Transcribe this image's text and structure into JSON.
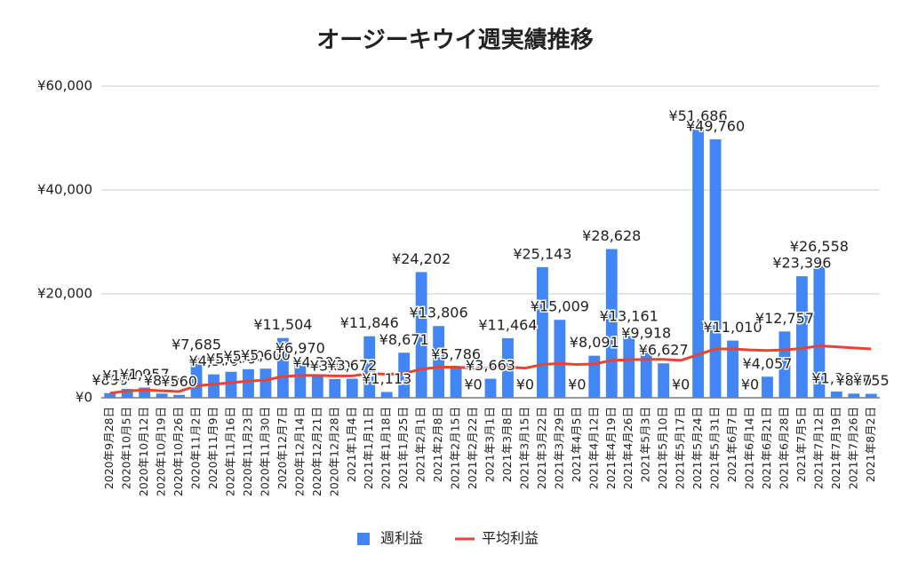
{
  "chart_data": {
    "type": "bar-line",
    "title": "オージーキウイ週実績推移",
    "categories": [
      "2020年9月28日",
      "2020年10月5日",
      "2020年10月12日",
      "2020年10月19日",
      "2020年10月26日",
      "2020年11月2日",
      "2020年11月9日",
      "2020年11月16日",
      "2020年11月23日",
      "2020年11月30日",
      "2020年12月7日",
      "2020年12月14日",
      "2020年12月21日",
      "2020年12月28日",
      "2021年1月4日",
      "2021年1月11日",
      "2021年1月18日",
      "2021年1月25日",
      "2021年2月1日",
      "2021年2月8日",
      "2021年2月15日",
      "2021年2月22日",
      "2021年3月1日",
      "2021年3月8日",
      "2021年3月15日",
      "2021年3月22日",
      "2021年3月29日",
      "2021年4月5日",
      "2021年4月12日",
      "2021年4月19日",
      "2021年4月26日",
      "2021年5月3日",
      "2021年5月10日",
      "2021年5月17日",
      "2021年5月24日",
      "2021年5月31日",
      "2021年6月7日",
      "2021年6月14日",
      "2021年6月21日",
      "2021年6月28日",
      "2021年7月5日",
      "2021年7月12日",
      "2021年7月19日",
      "2021年7月26日",
      "2021年8月2日"
    ],
    "series": [
      {
        "name": "週利益",
        "kind": "bar",
        "color": "#4285f4",
        "values": [
          890,
          1700,
          1957,
          800,
          560,
          7685,
          4500,
          5000,
          5500,
          5600,
          11504,
          6970,
          4300,
          3600,
          3672,
          11846,
          1113,
          8671,
          24202,
          13806,
          5786,
          0,
          3663,
          11464,
          0,
          25143,
          15009,
          0,
          8091,
          28628,
          13161,
          9918,
          6627,
          0,
          51686,
          49760,
          11010,
          0,
          4057,
          12757,
          23396,
          26558,
          1200,
          800,
          755
        ],
        "value_labels": [
          "¥890",
          "¥1,700",
          "¥1,957",
          "¥800",
          "¥560",
          "¥7,685",
          "¥4,500",
          "¥5,000",
          "¥5,500",
          "¥5,600",
          "¥11,504",
          "¥6,970",
          "¥4,300",
          "¥3,600",
          "¥3,672",
          "¥11,846",
          "¥1,113",
          "¥8,671",
          "¥24,202",
          "¥13,806",
          "¥5,786",
          "¥0",
          "¥3,663",
          "¥11,464",
          "¥0",
          "¥25,143",
          "¥15,009",
          "¥0",
          "¥8,091",
          "¥28,628",
          "¥13,161",
          "¥9,918",
          "¥6,627",
          "¥0",
          "¥51,686",
          "¥49,760",
          "¥11,010",
          "¥0",
          "¥4,057",
          "¥12,757",
          "¥23,396",
          "¥26,558",
          "¥1,200",
          "¥800",
          "¥755"
        ]
      },
      {
        "name": "平均利益",
        "kind": "line",
        "color": "#ea4335",
        "values": [
          890,
          1300,
          1500,
          1350,
          1200,
          2300,
          2600,
          2900,
          3200,
          3400,
          4100,
          4300,
          4300,
          4200,
          4200,
          4700,
          4500,
          4700,
          5500,
          5900,
          5900,
          5700,
          5700,
          5900,
          5700,
          6400,
          6600,
          6400,
          6500,
          7200,
          7300,
          7400,
          7400,
          7200,
          8300,
          9400,
          9400,
          9200,
          9100,
          9200,
          9500,
          10000,
          9800,
          9600,
          9400
        ]
      }
    ],
    "ylim": [
      0,
      60000
    ],
    "yticks": [
      {
        "value": 0,
        "label": "¥0"
      },
      {
        "value": 20000,
        "label": "¥20,000"
      },
      {
        "value": 40000,
        "label": "¥40,000"
      },
      {
        "value": 60000,
        "label": "¥60,000"
      }
    ],
    "grid": true,
    "legend": "bottom"
  }
}
